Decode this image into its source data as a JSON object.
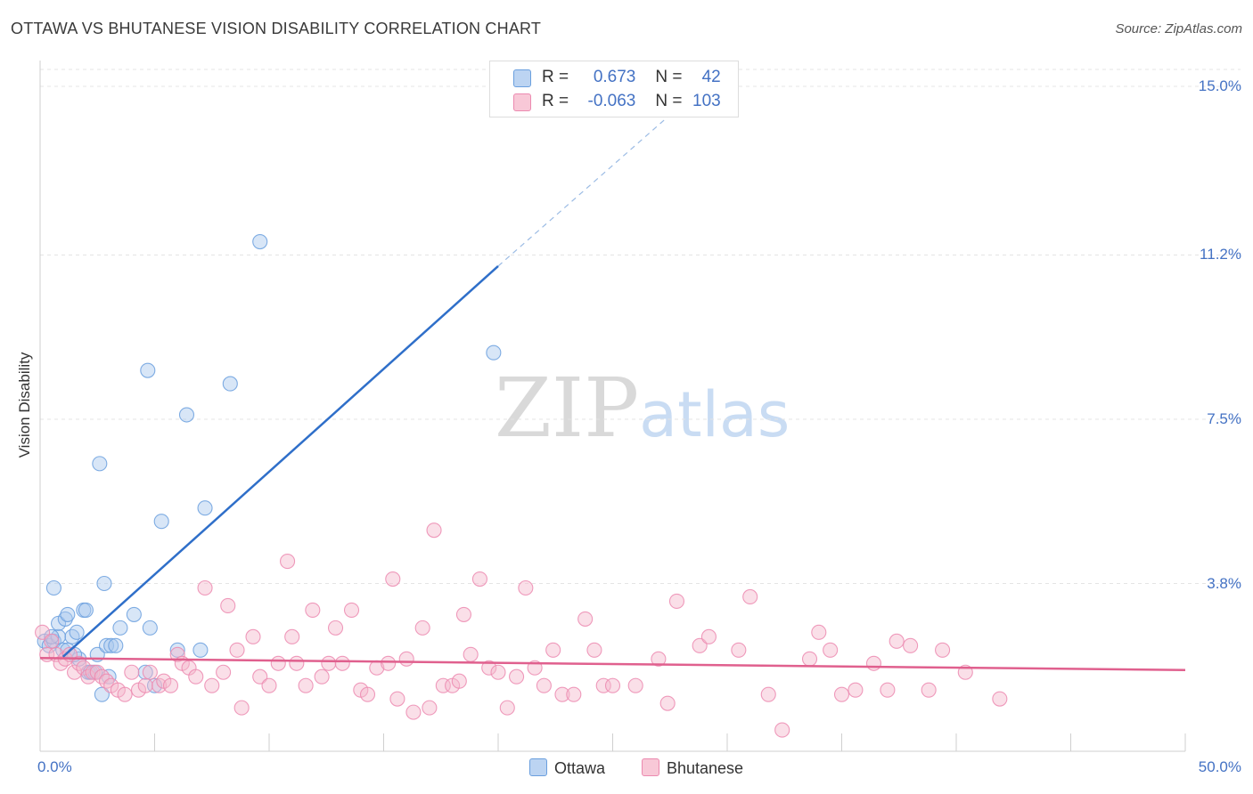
{
  "header": {
    "title": "OTTAWA VS BHUTANESE VISION DISABILITY CORRELATION CHART",
    "source": "Source: ZipAtlas.com"
  },
  "watermark": {
    "zip": "ZIP",
    "atlas": "atlas"
  },
  "legend": {
    "rows": [
      {
        "r_label": "R = ",
        "r_value": "0.673",
        "n_label": "N = ",
        "n_value": "42",
        "color": "#a9c8ee"
      },
      {
        "r_label": "R = ",
        "r_value": "-0.063",
        "n_label": "N = ",
        "n_value": "103",
        "color": "#f5b8cb"
      }
    ]
  },
  "bottom_legend": {
    "ottawa": "Ottawa",
    "bhutanese": "Bhutanese"
  },
  "chart_data": {
    "type": "scatter",
    "ylabel": "Vision Disability",
    "xlim": [
      0,
      50
    ],
    "ylim": [
      0,
      15
    ],
    "x_tick_labels": [
      "0.0%",
      "50.0%"
    ],
    "y_ticks": [
      3.8,
      7.5,
      11.2,
      15.0
    ],
    "y_tick_labels": [
      "3.8%",
      "7.5%",
      "11.2%",
      "15.0%"
    ],
    "grid": true,
    "legend_position": "top-center",
    "series": [
      {
        "name": "Ottawa",
        "color": "#6a9fde",
        "fill": "#a9c8ee",
        "points": [
          [
            0.2,
            2.5
          ],
          [
            0.4,
            2.4
          ],
          [
            0.6,
            2.5
          ],
          [
            0.8,
            2.6
          ],
          [
            1.0,
            2.3
          ],
          [
            1.2,
            2.3
          ],
          [
            0.6,
            3.7
          ],
          [
            0.8,
            2.9
          ],
          [
            1.1,
            3.0
          ],
          [
            1.2,
            3.1
          ],
          [
            1.4,
            2.6
          ],
          [
            1.6,
            2.7
          ],
          [
            1.7,
            2.1
          ],
          [
            1.9,
            3.2
          ],
          [
            2.0,
            3.2
          ],
          [
            2.1,
            1.8
          ],
          [
            2.2,
            1.8
          ],
          [
            2.4,
            1.8
          ],
          [
            2.5,
            2.2
          ],
          [
            2.6,
            6.5
          ],
          [
            2.7,
            1.3
          ],
          [
            2.8,
            3.8
          ],
          [
            2.9,
            2.4
          ],
          [
            3.1,
            2.4
          ],
          [
            3.3,
            2.4
          ],
          [
            3.5,
            2.8
          ],
          [
            4.1,
            3.1
          ],
          [
            4.6,
            1.8
          ],
          [
            4.7,
            8.6
          ],
          [
            4.8,
            2.8
          ],
          [
            5.0,
            1.5
          ],
          [
            5.3,
            5.2
          ],
          [
            6.0,
            2.3
          ],
          [
            6.4,
            7.6
          ],
          [
            7.0,
            2.3
          ],
          [
            7.2,
            5.5
          ],
          [
            8.3,
            8.3
          ],
          [
            9.6,
            11.5
          ],
          [
            19.8,
            9.0
          ],
          [
            0.5,
            2.6
          ],
          [
            1.5,
            2.2
          ],
          [
            3.0,
            1.7
          ]
        ],
        "trend": {
          "x0": 1.0,
          "y0": 2.15,
          "x1": 20.0,
          "y1": 10.95,
          "dash_x1": 27.6,
          "dash_y1": 14.4
        }
      },
      {
        "name": "Bhutanese",
        "color": "#ec8ab0",
        "fill": "#f5b8cb",
        "points": [
          [
            0.1,
            2.7
          ],
          [
            0.3,
            2.2
          ],
          [
            0.5,
            2.5
          ],
          [
            0.7,
            2.2
          ],
          [
            0.9,
            2.0
          ],
          [
            1.1,
            2.1
          ],
          [
            1.3,
            2.2
          ],
          [
            1.5,
            1.8
          ],
          [
            1.7,
            2.0
          ],
          [
            1.9,
            1.9
          ],
          [
            2.1,
            1.7
          ],
          [
            2.3,
            1.8
          ],
          [
            2.5,
            1.8
          ],
          [
            2.7,
            1.7
          ],
          [
            2.9,
            1.6
          ],
          [
            3.1,
            1.5
          ],
          [
            3.4,
            1.4
          ],
          [
            3.7,
            1.3
          ],
          [
            4.0,
            1.8
          ],
          [
            4.3,
            1.4
          ],
          [
            4.6,
            1.5
          ],
          [
            4.8,
            1.8
          ],
          [
            5.2,
            1.5
          ],
          [
            5.4,
            1.6
          ],
          [
            5.7,
            1.5
          ],
          [
            6.0,
            2.2
          ],
          [
            6.2,
            2.0
          ],
          [
            6.5,
            1.9
          ],
          [
            6.8,
            1.7
          ],
          [
            7.2,
            3.7
          ],
          [
            7.5,
            1.5
          ],
          [
            8.0,
            1.8
          ],
          [
            8.2,
            3.3
          ],
          [
            8.6,
            2.3
          ],
          [
            8.8,
            1.0
          ],
          [
            9.3,
            2.6
          ],
          [
            9.6,
            1.7
          ],
          [
            10.0,
            1.5
          ],
          [
            10.4,
            2.0
          ],
          [
            10.8,
            4.3
          ],
          [
            11.0,
            2.6
          ],
          [
            11.2,
            2.0
          ],
          [
            11.6,
            1.5
          ],
          [
            11.9,
            3.2
          ],
          [
            12.3,
            1.7
          ],
          [
            12.6,
            2.0
          ],
          [
            12.9,
            2.8
          ],
          [
            13.2,
            2.0
          ],
          [
            13.6,
            3.2
          ],
          [
            14.0,
            1.4
          ],
          [
            14.3,
            1.3
          ],
          [
            14.7,
            1.9
          ],
          [
            15.2,
            2.0
          ],
          [
            15.4,
            3.9
          ],
          [
            15.6,
            1.2
          ],
          [
            16.0,
            2.1
          ],
          [
            16.3,
            0.9
          ],
          [
            16.7,
            2.8
          ],
          [
            17.0,
            1.0
          ],
          [
            17.2,
            5.0
          ],
          [
            17.6,
            1.5
          ],
          [
            18.0,
            1.5
          ],
          [
            18.3,
            1.6
          ],
          [
            18.5,
            3.1
          ],
          [
            18.8,
            2.2
          ],
          [
            19.2,
            3.9
          ],
          [
            19.6,
            1.9
          ],
          [
            20.0,
            1.8
          ],
          [
            20.4,
            1.0
          ],
          [
            20.8,
            1.7
          ],
          [
            21.2,
            3.7
          ],
          [
            21.6,
            1.9
          ],
          [
            22.0,
            1.5
          ],
          [
            22.4,
            2.3
          ],
          [
            22.8,
            1.3
          ],
          [
            23.3,
            1.3
          ],
          [
            23.8,
            3.0
          ],
          [
            24.2,
            2.3
          ],
          [
            24.6,
            1.5
          ],
          [
            25.0,
            1.5
          ],
          [
            26.0,
            1.5
          ],
          [
            27.0,
            2.1
          ],
          [
            27.4,
            1.1
          ],
          [
            27.8,
            3.4
          ],
          [
            28.8,
            2.4
          ],
          [
            29.2,
            2.6
          ],
          [
            30.5,
            2.3
          ],
          [
            31.0,
            3.5
          ],
          [
            31.8,
            1.3
          ],
          [
            32.4,
            0.5
          ],
          [
            33.6,
            2.1
          ],
          [
            34.0,
            2.7
          ],
          [
            34.5,
            2.3
          ],
          [
            35.0,
            1.3
          ],
          [
            35.6,
            1.4
          ],
          [
            36.4,
            2.0
          ],
          [
            37.0,
            1.4
          ],
          [
            37.4,
            2.5
          ],
          [
            38.0,
            2.4
          ],
          [
            38.8,
            1.4
          ],
          [
            39.4,
            2.3
          ],
          [
            40.4,
            1.8
          ],
          [
            41.9,
            1.2
          ]
        ],
        "trend": {
          "x0": 0.0,
          "y0": 2.12,
          "x1": 50.0,
          "y1": 1.85
        }
      }
    ]
  }
}
